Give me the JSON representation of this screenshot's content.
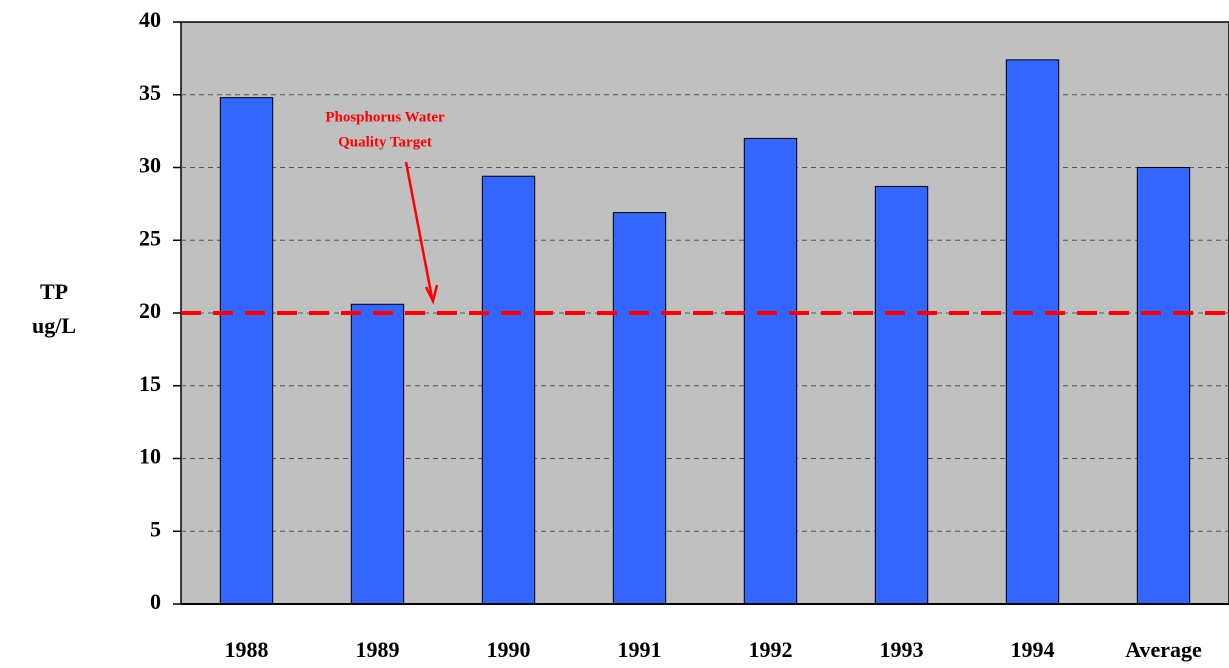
{
  "chart_data": {
    "type": "bar",
    "categories": [
      "1988",
      "1989",
      "1990",
      "1991",
      "1992",
      "1993",
      "1994",
      "Average"
    ],
    "values": [
      34.8,
      20.6,
      29.4,
      26.9,
      32.0,
      28.7,
      37.4,
      30.0
    ],
    "color": "#3366ff",
    "ylabel": [
      "TP",
      "ug/L"
    ],
    "ylim": [
      0,
      40
    ],
    "yticks": [
      0,
      5,
      10,
      15,
      20,
      25,
      30,
      35,
      40
    ],
    "grid": true,
    "target": {
      "value": 20,
      "label": [
        "Phosphorus Water",
        "Quality Target"
      ],
      "color": "#ff0000"
    }
  }
}
